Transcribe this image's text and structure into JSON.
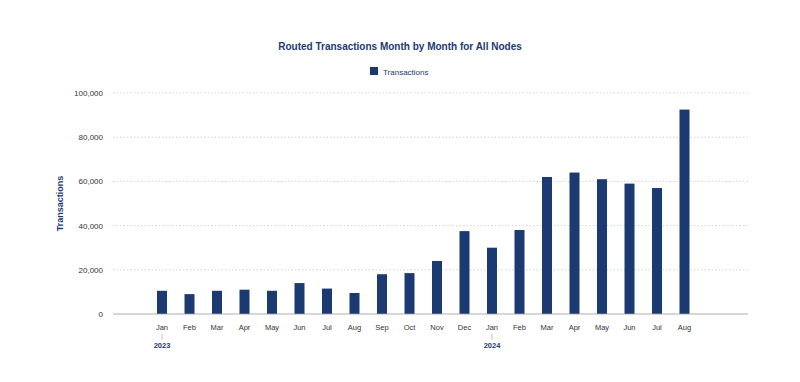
{
  "chart_data": {
    "type": "bar",
    "title": "Routed Transactions Month by Month for All Nodes",
    "y_label": "Transactions",
    "categories": [
      "Jan 2023",
      "Feb",
      "Mar",
      "Apr",
      "May",
      "Jun",
      "Jul",
      "Aug",
      "Sep",
      "Oct",
      "Nov",
      "Dec",
      "Jan 2024",
      "Feb",
      "Mar",
      "Apr",
      "May",
      "Jun",
      "Jul",
      "Aug"
    ],
    "series": [
      {
        "name": "Transactions",
        "color": "#1c3a72",
        "values": [
          10500,
          9000,
          10500,
          11000,
          10500,
          14000,
          11500,
          9500,
          18000,
          18500,
          24000,
          37500,
          30000,
          38000,
          62000,
          64000,
          61000,
          59000,
          57000,
          92500
        ]
      }
    ],
    "ylim": [
      0,
      100000
    ],
    "yticks": [
      0,
      {
        "value": 20000,
        "label": "20,000"
      },
      {
        "value": 40000,
        "label": "40,000"
      },
      {
        "value": 60000,
        "label": "60,000"
      },
      {
        "value": 80000,
        "label": "80,000"
      },
      {
        "value": 100000,
        "label": "100,000"
      }
    ],
    "grid": true,
    "legend": "top"
  }
}
